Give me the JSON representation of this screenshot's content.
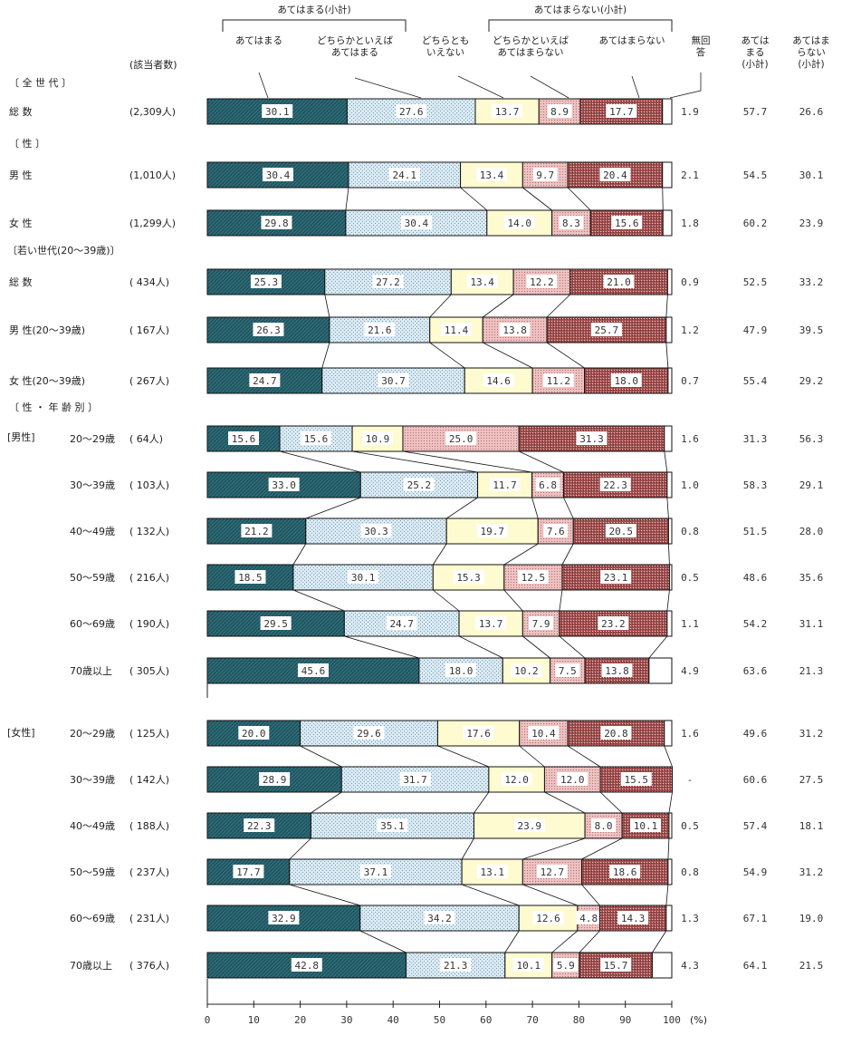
{
  "chart_data": {
    "type": "bar",
    "orientation": "horizontal",
    "stacked": true,
    "unit_label": "(%)",
    "count_header": "(該当者数)",
    "group_headers": {
      "agree_subtotal": "あてはまる(小計)",
      "disagree_subtotal": "あてはまらない(小計)"
    },
    "series_headers": {
      "s1": "あてはまる",
      "s2_line1": "どちらかといえば",
      "s2_line2": "あてはまる",
      "s3_line1": "どちらとも",
      "s3_line2": "いえない",
      "s4_line1": "どちらかといえば",
      "s4_line2": "あてはまらない",
      "s5": "あてはまらない",
      "na_line1": "無回",
      "na_line2": "答"
    },
    "subtotal_headers": {
      "agree_line1": "あては",
      "agree_line2": "まる",
      "agree_line3": "(小計)",
      "disagree_line1": "あてはま",
      "disagree_line2": "らない",
      "disagree_line3": "(小計)"
    },
    "series": [
      {
        "name": "あてはまる",
        "color": "#2e6e7a"
      },
      {
        "name": "どちらかといえばあてはまる",
        "color": "#cfe3ef"
      },
      {
        "name": "どちらともいえない",
        "color": "#fffbd0"
      },
      {
        "name": "どちらかといえばあてはまらない",
        "color": "#e9b4b4"
      },
      {
        "name": "あてはまらない",
        "color": "#a85a5a"
      },
      {
        "name": "無回答",
        "color": "#ffffff"
      }
    ],
    "xaxis": {
      "ticks": [
        "0",
        "10",
        "20",
        "30",
        "40",
        "50",
        "60",
        "70",
        "80",
        "90",
        "100"
      ],
      "range": [
        0,
        100
      ]
    },
    "section_labels": {
      "all": "〔 全 世 代 〕",
      "sex": "〔 性 〕",
      "young": "〔若い世代(20〜39歳)〕",
      "age": "〔 性 ・ 年 齢 別 〕",
      "male_group": "[男性]",
      "female_group": "[女性]"
    },
    "rows": [
      {
        "label": "総 数",
        "n": "(2,309人)",
        "values": [
          30.1,
          27.6,
          13.7,
          8.9,
          17.7,
          1.9
        ],
        "labels": [
          "30.1",
          "27.6",
          "13.7",
          "8.9",
          "17.7",
          "1.9"
        ],
        "agree": "57.7",
        "disagree": "26.6"
      },
      {
        "label": "男 性",
        "n": "(1,010人)",
        "values": [
          30.4,
          24.1,
          13.4,
          9.7,
          20.4,
          2.1
        ],
        "labels": [
          "30.4",
          "24.1",
          "13.4",
          "9.7",
          "20.4",
          "2.1"
        ],
        "agree": "54.5",
        "disagree": "30.1"
      },
      {
        "label": "女 性",
        "n": "(1,299人)",
        "values": [
          29.8,
          30.4,
          14.0,
          8.3,
          15.6,
          1.8
        ],
        "labels": [
          "29.8",
          "30.4",
          "14.0",
          "8.3",
          "15.6",
          "1.8"
        ],
        "agree": "60.2",
        "disagree": "23.9"
      },
      {
        "label": "総 数",
        "n": "( 434人)",
        "values": [
          25.3,
          27.2,
          13.4,
          12.2,
          21.0,
          0.9
        ],
        "labels": [
          "25.3",
          "27.2",
          "13.4",
          "12.2",
          "21.0",
          "0.9"
        ],
        "agree": "52.5",
        "disagree": "33.2"
      },
      {
        "label": "男 性(20〜39歳)",
        "n": "( 167人)",
        "values": [
          26.3,
          21.6,
          11.4,
          13.8,
          25.7,
          1.2
        ],
        "labels": [
          "26.3",
          "21.6",
          "11.4",
          "13.8",
          "25.7",
          "1.2"
        ],
        "agree": "47.9",
        "disagree": "39.5"
      },
      {
        "label": "女 性(20〜39歳)",
        "n": "( 267人)",
        "values": [
          24.7,
          30.7,
          14.6,
          11.2,
          18.0,
          0.7
        ],
        "labels": [
          "24.7",
          "30.7",
          "14.6",
          "11.2",
          "18.0",
          "0.7"
        ],
        "agree": "55.4",
        "disagree": "29.2"
      },
      {
        "label": "20〜29歳",
        "n": "( 64人)",
        "values": [
          15.6,
          15.6,
          10.9,
          25.0,
          31.3,
          1.6
        ],
        "labels": [
          "15.6",
          "15.6",
          "10.9",
          "25.0",
          "31.3",
          "1.6"
        ],
        "agree": "31.3",
        "disagree": "56.3"
      },
      {
        "label": "30〜39歳",
        "n": "( 103人)",
        "values": [
          33.0,
          25.2,
          11.7,
          6.8,
          22.3,
          1.0
        ],
        "labels": [
          "33.0",
          "25.2",
          "11.7",
          "6.8",
          "22.3",
          "1.0"
        ],
        "agree": "58.3",
        "disagree": "29.1"
      },
      {
        "label": "40〜49歳",
        "n": "( 132人)",
        "values": [
          21.2,
          30.3,
          19.7,
          7.6,
          20.5,
          0.8
        ],
        "labels": [
          "21.2",
          "30.3",
          "19.7",
          "7.6",
          "20.5",
          "0.8"
        ],
        "agree": "51.5",
        "disagree": "28.0"
      },
      {
        "label": "50〜59歳",
        "n": "( 216人)",
        "values": [
          18.5,
          30.1,
          15.3,
          12.5,
          23.1,
          0.5
        ],
        "labels": [
          "18.5",
          "30.1",
          "15.3",
          "12.5",
          "23.1",
          "0.5"
        ],
        "agree": "48.6",
        "disagree": "35.6"
      },
      {
        "label": "60〜69歳",
        "n": "( 190人)",
        "values": [
          29.5,
          24.7,
          13.7,
          7.9,
          23.2,
          1.1
        ],
        "labels": [
          "29.5",
          "24.7",
          "13.7",
          "7.9",
          "23.2",
          "1.1"
        ],
        "agree": "54.2",
        "disagree": "31.1"
      },
      {
        "label": "70歳以上",
        "n": "( 305人)",
        "values": [
          45.6,
          18.0,
          10.2,
          7.5,
          13.8,
          4.9
        ],
        "labels": [
          "45.6",
          "18.0",
          "10.2",
          "7.5",
          "13.8",
          "4.9"
        ],
        "agree": "63.6",
        "disagree": "21.3"
      },
      {
        "label": "20〜29歳",
        "n": "( 125人)",
        "values": [
          20.0,
          29.6,
          17.6,
          10.4,
          20.8,
          1.6
        ],
        "labels": [
          "20.0",
          "29.6",
          "17.6",
          "10.4",
          "20.8",
          "1.6"
        ],
        "agree": "49.6",
        "disagree": "31.2"
      },
      {
        "label": "30〜39歳",
        "n": "( 142人)",
        "values": [
          28.9,
          31.7,
          12.0,
          12.0,
          15.5,
          0
        ],
        "labels": [
          "28.9",
          "31.7",
          "12.0",
          "12.0",
          "15.5",
          "-"
        ],
        "agree": "60.6",
        "disagree": "27.5"
      },
      {
        "label": "40〜49歳",
        "n": "( 188人)",
        "values": [
          22.3,
          35.1,
          23.9,
          8.0,
          10.1,
          0.5
        ],
        "labels": [
          "22.3",
          "35.1",
          "23.9",
          "8.0",
          "10.1",
          "0.5"
        ],
        "agree": "57.4",
        "disagree": "18.1"
      },
      {
        "label": "50〜59歳",
        "n": "( 237人)",
        "values": [
          17.7,
          37.1,
          13.1,
          12.7,
          18.6,
          0.8
        ],
        "labels": [
          "17.7",
          "37.1",
          "13.1",
          "12.7",
          "18.6",
          "0.8"
        ],
        "agree": "54.9",
        "disagree": "31.2"
      },
      {
        "label": "60〜69歳",
        "n": "( 231人)",
        "values": [
          32.9,
          34.2,
          12.6,
          4.8,
          14.3,
          1.3
        ],
        "labels": [
          "32.9",
          "34.2",
          "12.6",
          "4.8",
          "14.3",
          "1.3"
        ],
        "agree": "67.1",
        "disagree": "19.0"
      },
      {
        "label": "70歳以上",
        "n": "( 376人)",
        "values": [
          42.8,
          21.3,
          10.1,
          5.9,
          15.7,
          4.3
        ],
        "labels": [
          "42.8",
          "21.3",
          "10.1",
          "5.9",
          "15.7",
          "4.3"
        ],
        "agree": "64.1",
        "disagree": "21.5"
      }
    ]
  }
}
